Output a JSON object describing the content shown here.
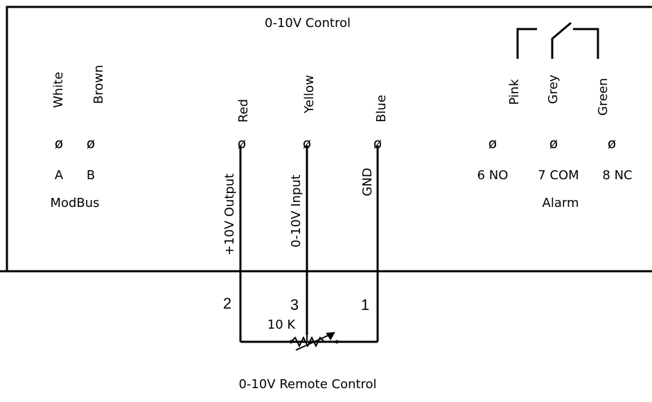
{
  "header": {
    "title": "0-10V Control"
  },
  "modbus": {
    "wire_a": "White",
    "wire_b": "Brown",
    "terminal_symbol": "ø",
    "label_a": "A",
    "label_b": "B",
    "group_label": "ModBus"
  },
  "control": {
    "wire_red": "Red",
    "wire_yellow": "Yellow",
    "wire_blue": "Blue",
    "terminal_symbol": "ø",
    "label_output": "+10V Output",
    "label_input": "0-10V Input",
    "label_gnd": "GND"
  },
  "alarm": {
    "wire_pink": "Pink",
    "wire_grey": "Grey",
    "wire_green": "Green",
    "terminal_symbol": "ø",
    "label_no": "6 NO",
    "label_com": "7 COM",
    "label_nc": "8 NC",
    "group_label": "Alarm"
  },
  "remote": {
    "pin_2": "2",
    "pin_3": "3",
    "pin_1": "1",
    "pot_value": "10 K",
    "caption": "0-10V Remote Control"
  }
}
